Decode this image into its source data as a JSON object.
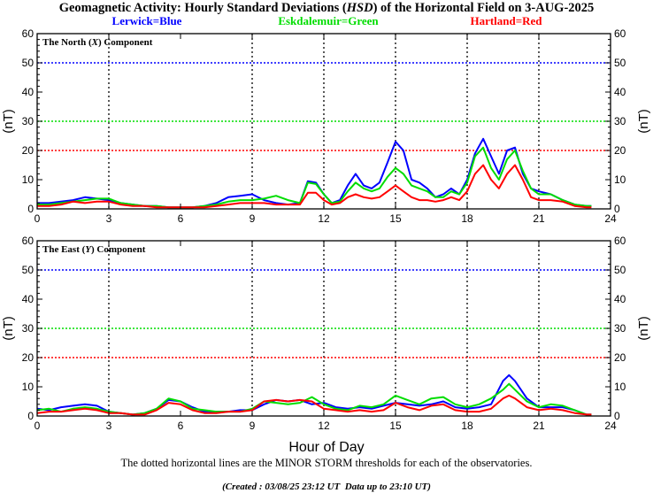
{
  "header": {
    "title_before": "Geomagnetic Activity: Hourly Standard Deviations (",
    "title_em": "HSD",
    "title_after": ") of the Horizontal Field on 3-AUG-2025",
    "legend": [
      {
        "label": "Lerwick=Blue",
        "color": "#0000ff"
      },
      {
        "label": "Eskdalemuir=Green",
        "color": "#00dd00"
      },
      {
        "label": "Hartland=Red",
        "color": "#ff0000"
      }
    ]
  },
  "footer": {
    "note": "The dotted horizontal lines are the MINOR STORM thresholds for each of the observatories.",
    "created": "(Created : 03/08/25 23:12 UT  Data up to 23:10 UT)"
  },
  "chart_data": [
    {
      "type": "line",
      "title_before": "The North (",
      "title_em": "X",
      "title_after": ") Component",
      "xlabel": "",
      "ylabel": "(nT)",
      "xlim": [
        0,
        24
      ],
      "ylim": [
        0,
        60
      ],
      "xticks": [
        0,
        3,
        6,
        9,
        12,
        15,
        18,
        21,
        24
      ],
      "yticks": [
        0,
        10,
        20,
        30,
        40,
        50,
        60
      ],
      "vgrid": [
        3,
        9,
        12,
        15,
        18,
        21
      ],
      "thresholds": [
        {
          "station": "Lerwick",
          "value": 50,
          "color": "#0000ff"
        },
        {
          "station": "Eskdalemuir",
          "value": 30,
          "color": "#00dd00"
        },
        {
          "station": "Hartland",
          "value": 20,
          "color": "#ff0000"
        }
      ],
      "series": [
        {
          "name": "Lerwick",
          "color": "#0000ff",
          "x": [
            0,
            0.5,
            1,
            1.5,
            2,
            2.5,
            3,
            3.5,
            4,
            4.5,
            5,
            5.5,
            6,
            6.5,
            7,
            7.5,
            8,
            8.5,
            9,
            9.5,
            10,
            10.5,
            11,
            11.33,
            11.67,
            12,
            12.33,
            12.67,
            13,
            13.33,
            13.67,
            14,
            14.33,
            14.67,
            15,
            15.33,
            15.67,
            16,
            16.33,
            16.67,
            17,
            17.33,
            17.67,
            18,
            18.33,
            18.67,
            19,
            19.33,
            19.67,
            20,
            20.33,
            20.67,
            21,
            21.5,
            22,
            22.5,
            23,
            23.2
          ],
          "y": [
            2,
            2,
            2.5,
            3,
            4,
            3.5,
            3,
            2,
            1.5,
            1,
            1,
            0.5,
            0.5,
            0.5,
            1,
            2,
            4,
            4.5,
            5,
            3,
            2,
            1.5,
            2,
            9.5,
            9,
            5,
            2,
            3,
            8,
            12,
            8,
            7,
            9,
            16,
            23,
            20,
            10,
            9,
            7,
            4,
            5,
            7,
            5,
            10,
            19,
            24,
            18,
            12,
            20,
            21,
            12,
            7,
            6,
            5,
            3,
            1.5,
            1,
            1
          ]
        },
        {
          "name": "Eskdalemuir",
          "color": "#00dd00",
          "x": [
            0,
            0.5,
            1,
            1.5,
            2,
            2.5,
            3,
            3.5,
            4,
            4.5,
            5,
            5.5,
            6,
            6.5,
            7,
            7.5,
            8,
            8.5,
            9,
            9.5,
            10,
            10.5,
            11,
            11.33,
            11.67,
            12,
            12.33,
            12.67,
            13,
            13.33,
            13.67,
            14,
            14.33,
            14.67,
            15,
            15.33,
            15.67,
            16,
            16.33,
            16.67,
            17,
            17.33,
            17.67,
            18,
            18.33,
            18.67,
            19,
            19.33,
            19.67,
            20,
            20.33,
            20.67,
            21,
            21.5,
            22,
            22.5,
            23,
            23.2
          ],
          "y": [
            1.5,
            1.5,
            2,
            2.5,
            3,
            3.5,
            3.5,
            2,
            1.5,
            1,
            1,
            0.5,
            0.5,
            0.5,
            1,
            1.5,
            2.5,
            3,
            3,
            3.5,
            4.5,
            3,
            2,
            9,
            8.5,
            5,
            2,
            2.5,
            6,
            9,
            7,
            6,
            7,
            11,
            14,
            12,
            8,
            7,
            6,
            4,
            4,
            6,
            5,
            9,
            18,
            21,
            14,
            10,
            17,
            20,
            13,
            7,
            5,
            5,
            3,
            1.5,
            1,
            1
          ]
        },
        {
          "name": "Hartland",
          "color": "#ff0000",
          "x": [
            0,
            0.5,
            1,
            1.5,
            2,
            2.5,
            3,
            3.5,
            4,
            4.5,
            5,
            5.5,
            6,
            6.5,
            7,
            7.5,
            8,
            8.5,
            9,
            9.5,
            10,
            10.5,
            11,
            11.33,
            11.67,
            12,
            12.33,
            12.67,
            13,
            13.33,
            13.67,
            14,
            14.33,
            14.67,
            15,
            15.33,
            15.67,
            16,
            16.33,
            16.67,
            17,
            17.33,
            17.67,
            18,
            18.33,
            18.67,
            19,
            19.33,
            19.67,
            20,
            20.33,
            20.67,
            21,
            21.5,
            22,
            22.5,
            23,
            23.2
          ],
          "y": [
            1,
            1,
            1.5,
            2.5,
            2,
            2.5,
            2.5,
            1.5,
            1,
            1,
            0.5,
            0.5,
            0.5,
            0.5,
            0.5,
            1,
            1.5,
            2,
            2,
            2,
            1.5,
            1.5,
            1.5,
            5.5,
            5.5,
            3,
            1.5,
            2,
            4,
            5,
            4,
            3.5,
            4,
            6,
            8,
            6,
            4,
            3,
            3,
            2.5,
            3,
            4,
            3,
            6,
            12,
            15,
            10,
            7,
            12,
            15,
            10,
            4,
            3,
            3,
            2.5,
            1,
            0.5,
            0.5
          ]
        }
      ]
    },
    {
      "type": "line",
      "title_before": "The East (",
      "title_em": "Y",
      "title_after": ") Component",
      "xlabel": "Hour of Day",
      "ylabel": "(nT)",
      "xlim": [
        0,
        24
      ],
      "ylim": [
        0,
        60
      ],
      "xticks": [
        0,
        3,
        6,
        9,
        12,
        15,
        18,
        21,
        24
      ],
      "yticks": [
        0,
        10,
        20,
        30,
        40,
        50,
        60
      ],
      "vgrid": [
        3,
        9,
        12,
        15,
        18,
        21
      ],
      "thresholds": [
        {
          "station": "Lerwick",
          "value": 50,
          "color": "#0000ff"
        },
        {
          "station": "Eskdalemuir",
          "value": 30,
          "color": "#00dd00"
        },
        {
          "station": "Hartland",
          "value": 20,
          "color": "#ff0000"
        }
      ],
      "series": [
        {
          "name": "Lerwick",
          "color": "#0000ff",
          "x": [
            0,
            0.5,
            1,
            1.5,
            2,
            2.5,
            3,
            3.5,
            4,
            4.5,
            5,
            5.5,
            6,
            6.5,
            7,
            7.5,
            8,
            8.5,
            9,
            9.5,
            10,
            10.5,
            11,
            11.5,
            12,
            12.5,
            13,
            13.5,
            14,
            14.5,
            15,
            15.5,
            16,
            16.5,
            17,
            17.5,
            18,
            18.5,
            19,
            19.5,
            19.75,
            20,
            20.5,
            21,
            21.5,
            22,
            22.5,
            23,
            23.2
          ],
          "y": [
            2.5,
            2,
            3,
            3.5,
            4,
            3.5,
            1.5,
            1,
            0.5,
            1,
            2.5,
            5.5,
            5,
            3,
            1.5,
            1.5,
            1.5,
            2,
            2,
            4,
            5.5,
            5,
            5.5,
            4,
            4.5,
            3,
            2.5,
            3,
            2.5,
            3.5,
            4.5,
            4,
            3.5,
            4,
            5,
            3,
            2.5,
            3,
            4,
            12,
            14,
            12,
            6,
            3,
            3,
            3,
            2,
            0.5,
            0.5
          ]
        },
        {
          "name": "Eskdalemuir",
          "color": "#00dd00",
          "x": [
            0,
            0.5,
            1,
            1.5,
            2,
            2.5,
            3,
            3.5,
            4,
            4.5,
            5,
            5.5,
            6,
            6.5,
            7,
            7.5,
            8,
            8.5,
            9,
            9.5,
            10,
            10.5,
            11,
            11.5,
            12,
            12.5,
            13,
            13.5,
            14,
            14.5,
            15,
            15.5,
            16,
            16.5,
            17,
            17.5,
            18,
            18.5,
            19,
            19.5,
            19.75,
            20,
            20.5,
            21,
            21.5,
            22,
            22.5,
            23,
            23.2
          ],
          "y": [
            2,
            2.5,
            1.5,
            2.5,
            3,
            2.5,
            1.5,
            1,
            0.5,
            1,
            2.5,
            6,
            5,
            2.5,
            2,
            1.5,
            1.5,
            1.5,
            2.5,
            5,
            4.5,
            4,
            4.5,
            6.5,
            4,
            2.5,
            2,
            3.5,
            3,
            4,
            7,
            5.5,
            4,
            6,
            6.5,
            4,
            3,
            4,
            6,
            9,
            11,
            9,
            5,
            3,
            4,
            3.5,
            2,
            0.5,
            0.5
          ]
        },
        {
          "name": "Hartland",
          "color": "#ff0000",
          "x": [
            0,
            0.5,
            1,
            1.5,
            2,
            2.5,
            3,
            3.5,
            4,
            4.5,
            5,
            5.5,
            6,
            6.5,
            7,
            7.5,
            8,
            8.5,
            9,
            9.5,
            10,
            10.5,
            11,
            11.5,
            12,
            12.5,
            13,
            13.5,
            14,
            14.5,
            15,
            15.5,
            16,
            16.5,
            17,
            17.5,
            18,
            18.5,
            19,
            19.5,
            19.75,
            20,
            20.5,
            21,
            21.5,
            22,
            22.5,
            23,
            23.2
          ],
          "y": [
            1,
            1.5,
            1.5,
            2,
            2.5,
            2,
            1,
            1,
            0.5,
            0.5,
            2,
            4.5,
            4,
            2,
            1,
            1,
            1.5,
            1.5,
            2,
            5,
            5.5,
            5,
            5.5,
            5,
            2.5,
            2,
            1.5,
            2,
            1.5,
            2,
            4.5,
            3,
            2,
            3.5,
            4,
            2,
            1.5,
            1.5,
            2.5,
            6,
            7,
            6,
            3,
            2,
            2.5,
            2,
            1,
            0.5,
            0.5
          ]
        }
      ]
    }
  ]
}
